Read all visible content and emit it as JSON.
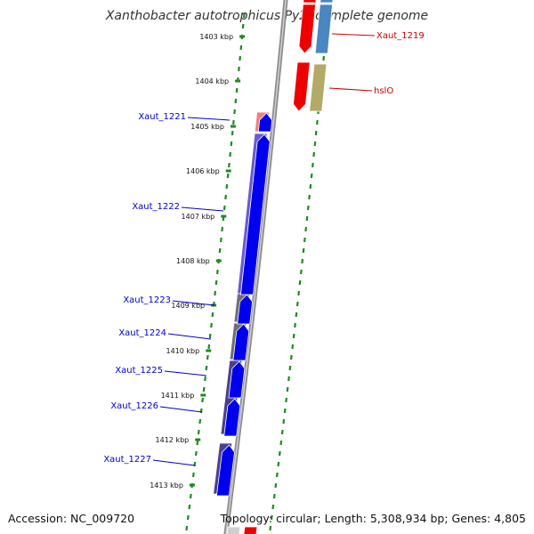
{
  "title": "Xanthobacter autotrophicus Py2, complete genome",
  "footer": {
    "accession": "Accession: NC_009720",
    "summary": "Topology: circular; Length: 5,308,934 bp; Genes: 4,805"
  },
  "colors": {
    "backbone": "#8c8c8c",
    "tick_green": "#1f8a1f",
    "label_blue": "#0000cc",
    "label_red": "#cc0000",
    "cds_blue": "#0000ee",
    "red_gene": "#ee0000",
    "pink_gene": "#f08080",
    "steel_gene": "#4a86c0",
    "olive_gene": "#b4aa68",
    "purple_gene": "#6a5acd",
    "dark_slate": "#4a3f8c",
    "gray_gene": "#707070"
  },
  "ticks": [
    "1403 kbp",
    "1404 kbp",
    "1405 kbp",
    "1406 kbp",
    "1407 kbp",
    "1408 kbp",
    "1409 kbp",
    "1410 kbp",
    "1411 kbp",
    "1412 kbp",
    "1413 kbp"
  ],
  "genes_left": [
    {
      "name": "Xaut_1221"
    },
    {
      "name": "Xaut_1222"
    },
    {
      "name": "Xaut_1223"
    },
    {
      "name": "Xaut_1224"
    },
    {
      "name": "Xaut_1225"
    },
    {
      "name": "Xaut_1226"
    },
    {
      "name": "Xaut_1227"
    }
  ],
  "genes_right": [
    {
      "name": "Xaut_1219"
    },
    {
      "name": "hslO"
    }
  ]
}
